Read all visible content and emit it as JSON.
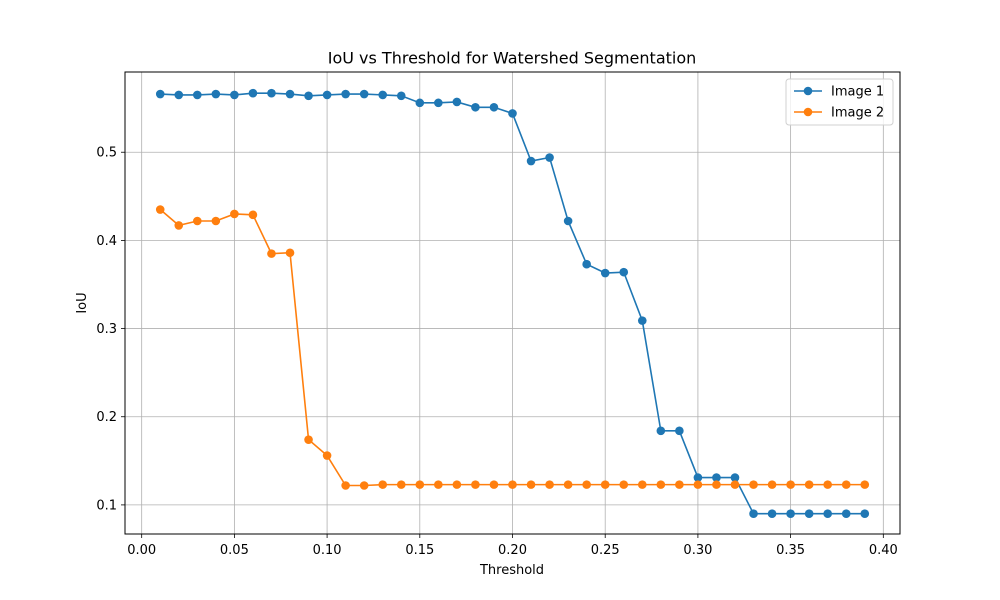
{
  "chart_data": {
    "type": "line",
    "title": "IoU vs Threshold for Watershed Segmentation",
    "xlabel": "Threshold",
    "ylabel": "IoU",
    "xlim": [
      -0.009,
      0.409
    ],
    "ylim": [
      0.067,
      0.591
    ],
    "xticks": [
      "0.00",
      "0.05",
      "0.10",
      "0.15",
      "0.20",
      "0.25",
      "0.30",
      "0.35",
      "0.40"
    ],
    "yticks": [
      "0.1",
      "0.2",
      "0.3",
      "0.4",
      "0.5"
    ],
    "grid": true,
    "legend_position": "top-right",
    "x": [
      0.01,
      0.02,
      0.03,
      0.04,
      0.05,
      0.06,
      0.07,
      0.08,
      0.09,
      0.1,
      0.11,
      0.12,
      0.13,
      0.14,
      0.15,
      0.16,
      0.17,
      0.18,
      0.19,
      0.2,
      0.21,
      0.22,
      0.23,
      0.24,
      0.25,
      0.26,
      0.27,
      0.28,
      0.29,
      0.3,
      0.31,
      0.32,
      0.33,
      0.34,
      0.35,
      0.36,
      0.37,
      0.38,
      0.39
    ],
    "series": [
      {
        "name": "Image 1",
        "color": "#1f77b4",
        "values": [
          0.566,
          0.565,
          0.565,
          0.566,
          0.565,
          0.567,
          0.567,
          0.566,
          0.564,
          0.565,
          0.566,
          0.566,
          0.565,
          0.564,
          0.556,
          0.556,
          0.557,
          0.551,
          0.551,
          0.544,
          0.49,
          0.494,
          0.422,
          0.373,
          0.363,
          0.364,
          0.309,
          0.184,
          0.184,
          0.131,
          0.131,
          0.131,
          0.09,
          0.09,
          0.09,
          0.09,
          0.09,
          0.09,
          0.09
        ]
      },
      {
        "name": "Image 2",
        "color": "#ff7f0e",
        "values": [
          0.435,
          0.417,
          0.422,
          0.422,
          0.43,
          0.429,
          0.385,
          0.386,
          0.174,
          0.156,
          0.122,
          0.122,
          0.123,
          0.123,
          0.123,
          0.123,
          0.123,
          0.123,
          0.123,
          0.123,
          0.123,
          0.123,
          0.123,
          0.123,
          0.123,
          0.123,
          0.123,
          0.123,
          0.123,
          0.123,
          0.123,
          0.123,
          0.123,
          0.123,
          0.123,
          0.123,
          0.123,
          0.123,
          0.123
        ]
      }
    ]
  }
}
